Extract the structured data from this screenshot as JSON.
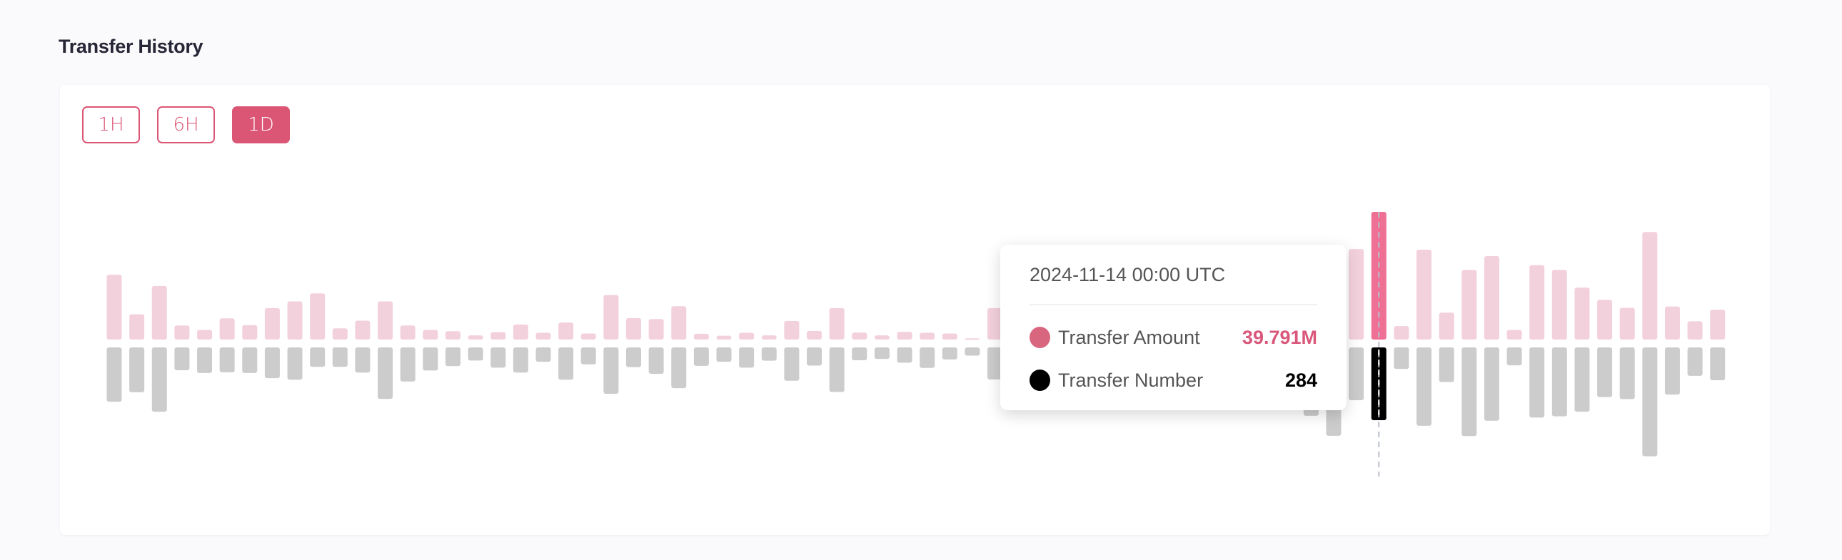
{
  "header": {
    "title": "Transfer History"
  },
  "range_buttons": [
    {
      "label": "1H",
      "active": false
    },
    {
      "label": "6H",
      "active": false
    },
    {
      "label": "1D",
      "active": true
    }
  ],
  "colors": {
    "accent": "#db5575",
    "amount_bar": "#f3d1dc",
    "amount_bar_highlight": "#ee7094",
    "number_bar": "#cccccc",
    "number_bar_highlight": "#000000",
    "amount_dot": "#d9667f",
    "amount_value": "#d9577a",
    "number_dot": "#000000",
    "crosshair": "#b8bfcc"
  },
  "chart_data": {
    "type": "bar",
    "layout": "mirrored",
    "series": [
      {
        "name": "Transfer Amount",
        "unit": "M",
        "direction": "up",
        "values": [
          20.2,
          7.9,
          16.7,
          4.4,
          3.0,
          6.6,
          4.5,
          9.8,
          11.9,
          14.4,
          3.5,
          5.9,
          11.9,
          4.4,
          3.0,
          2.6,
          1.3,
          2.3,
          4.7,
          2.1,
          5.3,
          1.9,
          13.9,
          6.7,
          6.4,
          10.4,
          1.8,
          1.2,
          2.1,
          1.3,
          5.8,
          2.7,
          9.8,
          2.2,
          1.3,
          2.4,
          2.1,
          1.9,
          0.4,
          9.8,
          null,
          null,
          null,
          null,
          null,
          null,
          null,
          null,
          null,
          null,
          null,
          null,
          null,
          null,
          null,
          28.2,
          39.791,
          4.2,
          28.0,
          8.4,
          21.7,
          26.0,
          3.0,
          23.2,
          21.7,
          16.2,
          12.4,
          9.9,
          33.5,
          10.3,
          5.7,
          9.3
        ]
      },
      {
        "name": "Transfer Number",
        "direction": "down",
        "values": [
          212,
          175,
          251,
          89,
          100,
          97,
          100,
          120,
          126,
          76,
          76,
          98,
          201,
          133,
          90,
          73,
          51,
          79,
          98,
          56,
          126,
          66,
          181,
          77,
          103,
          159,
          72,
          56,
          79,
          52,
          130,
          71,
          174,
          50,
          45,
          60,
          80,
          47,
          32,
          125,
          null,
          null,
          null,
          null,
          null,
          null,
          null,
          null,
          null,
          null,
          null,
          null,
          null,
          267,
          345,
          206,
          284,
          84,
          306,
          135,
          346,
          286,
          70,
          274,
          269,
          251,
          194,
          202,
          425,
          184,
          111,
          128
        ]
      }
    ],
    "highlighted_index": 56,
    "grid": false,
    "legend": "none",
    "tooltip": {
      "date": "2024-11-14 00:00 UTC",
      "rows": [
        {
          "label": "Transfer Amount",
          "value": "39.791M"
        },
        {
          "label": "Transfer Number",
          "value": "284"
        }
      ]
    }
  }
}
